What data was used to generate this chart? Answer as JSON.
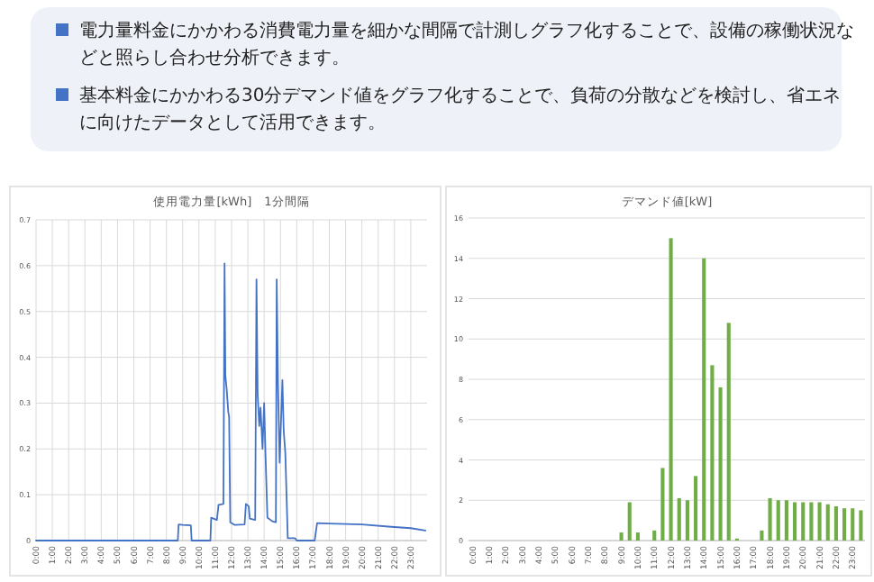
{
  "chart_data": [
    {
      "type": "line",
      "title": "使用電力量[kWh]　1分間隔",
      "annotations": [
        "電力量料金にかかわる消費電力量を細かな間隔で計測しグラフ化することで、設備の稼働状況などと照らし合わせ分析できます。",
        "基本料金にかかわる30分デマンド値をグラフ化することで、負荷の分散などを検討し、省エネに向けたデータとして活用できます。"
      ],
      "xlim": [
        0,
        24
      ],
      "ylim": [
        0,
        0.7
      ],
      "xticks": [
        {
          "value": 0,
          "label": "0:00"
        },
        {
          "value": 1,
          "label": "1:00"
        },
        {
          "value": 2,
          "label": "2:00"
        },
        {
          "value": 3,
          "label": "3:00"
        },
        {
          "value": 4,
          "label": "4:00"
        },
        {
          "value": 5,
          "label": "5:00"
        },
        {
          "value": 6,
          "label": "6:00"
        },
        {
          "value": 7,
          "label": "7:00"
        },
        {
          "value": 8,
          "label": "8:00"
        },
        {
          "value": 9,
          "label": "9:00"
        },
        {
          "value": 10,
          "label": "10:00"
        },
        {
          "value": 11,
          "label": "11:00"
        },
        {
          "value": 12,
          "label": "12:00"
        },
        {
          "value": 13,
          "label": "13:00"
        },
        {
          "value": 14,
          "label": "14:00"
        },
        {
          "value": 15,
          "label": "15:00"
        },
        {
          "value": 16,
          "label": "16:00"
        },
        {
          "value": 17,
          "label": "17:00"
        },
        {
          "value": 18,
          "label": "18:00"
        },
        {
          "value": 19,
          "label": "19:00"
        },
        {
          "value": 20,
          "label": "20:00"
        },
        {
          "value": 21,
          "label": "21:00"
        },
        {
          "value": 22,
          "label": "22:00"
        },
        {
          "value": 23,
          "label": "23:00"
        }
      ],
      "yticks": [
        0,
        0.1,
        0.2,
        0.3,
        0.4,
        0.5,
        0.6,
        0.7
      ],
      "grid": true,
      "series": [
        {
          "color": "#4472c4",
          "x": [
            0,
            8.7,
            8.75,
            9.0,
            9.5,
            9.55,
            10.7,
            10.75,
            11.1,
            11.2,
            11.5,
            11.57,
            11.62,
            11.7,
            11.8,
            11.85,
            11.92,
            12.2,
            12.8,
            12.88,
            13.05,
            13.12,
            13.45,
            13.53,
            13.6,
            13.7,
            13.78,
            13.9,
            14.0,
            14.08,
            14.2,
            14.5,
            14.72,
            14.77,
            14.85,
            14.95,
            15.12,
            15.2,
            15.3,
            15.45,
            15.9,
            16.0,
            17.1,
            17.25,
            18,
            20,
            21.8,
            23,
            23.9
          ],
          "values": [
            0,
            0,
            0.035,
            0.034,
            0.033,
            0,
            0,
            0.05,
            0.045,
            0.078,
            0.08,
            0.605,
            0.36,
            0.33,
            0.28,
            0.27,
            0.04,
            0.034,
            0.035,
            0.08,
            0.075,
            0.048,
            0.045,
            0.57,
            0.32,
            0.25,
            0.29,
            0.2,
            0.3,
            0.19,
            0.05,
            0.042,
            0.04,
            0.57,
            0.34,
            0.17,
            0.35,
            0.24,
            0.19,
            0.005,
            0.005,
            0,
            0,
            0.038,
            0.037,
            0.035,
            0.03,
            0.027,
            0.022
          ]
        }
      ]
    },
    {
      "type": "bar",
      "title": "デマンド値[kW]",
      "categories": [
        "0:00",
        null,
        "1:00",
        null,
        "2:00",
        null,
        "3:00",
        null,
        "4:00",
        null,
        "5:00",
        null,
        "6:00",
        null,
        "7:00",
        null,
        "8:00",
        null,
        "9:00",
        null,
        "10:00",
        null,
        "11:00",
        null,
        "12:00",
        null,
        "13:00",
        null,
        "14:00",
        null,
        "15:00",
        null,
        "16:00",
        null,
        "17:00",
        null,
        "18:00",
        null,
        "19:00",
        null,
        "20:00",
        null,
        "21:00",
        null,
        "22:00",
        null,
        "23:00",
        null
      ],
      "ylim": [
        0,
        16
      ],
      "yticks": [
        0,
        2,
        4,
        6,
        8,
        10,
        12,
        14,
        16
      ],
      "grid": "y",
      "series": [
        {
          "color": "#70ad47",
          "values": [
            0,
            0,
            0,
            0,
            0,
            0,
            0,
            0,
            0,
            0,
            0,
            0,
            0,
            0,
            0,
            0,
            0,
            0,
            0.4,
            1.9,
            0.4,
            0,
            0.5,
            3.6,
            15,
            2.1,
            2.0,
            3.2,
            14,
            8.7,
            7.6,
            10.8,
            0.1,
            0,
            0,
            0.5,
            2.1,
            2.0,
            2.0,
            1.9,
            1.9,
            1.9,
            1.9,
            1.8,
            1.7,
            1.6,
            1.6,
            1.5
          ]
        }
      ]
    }
  ]
}
